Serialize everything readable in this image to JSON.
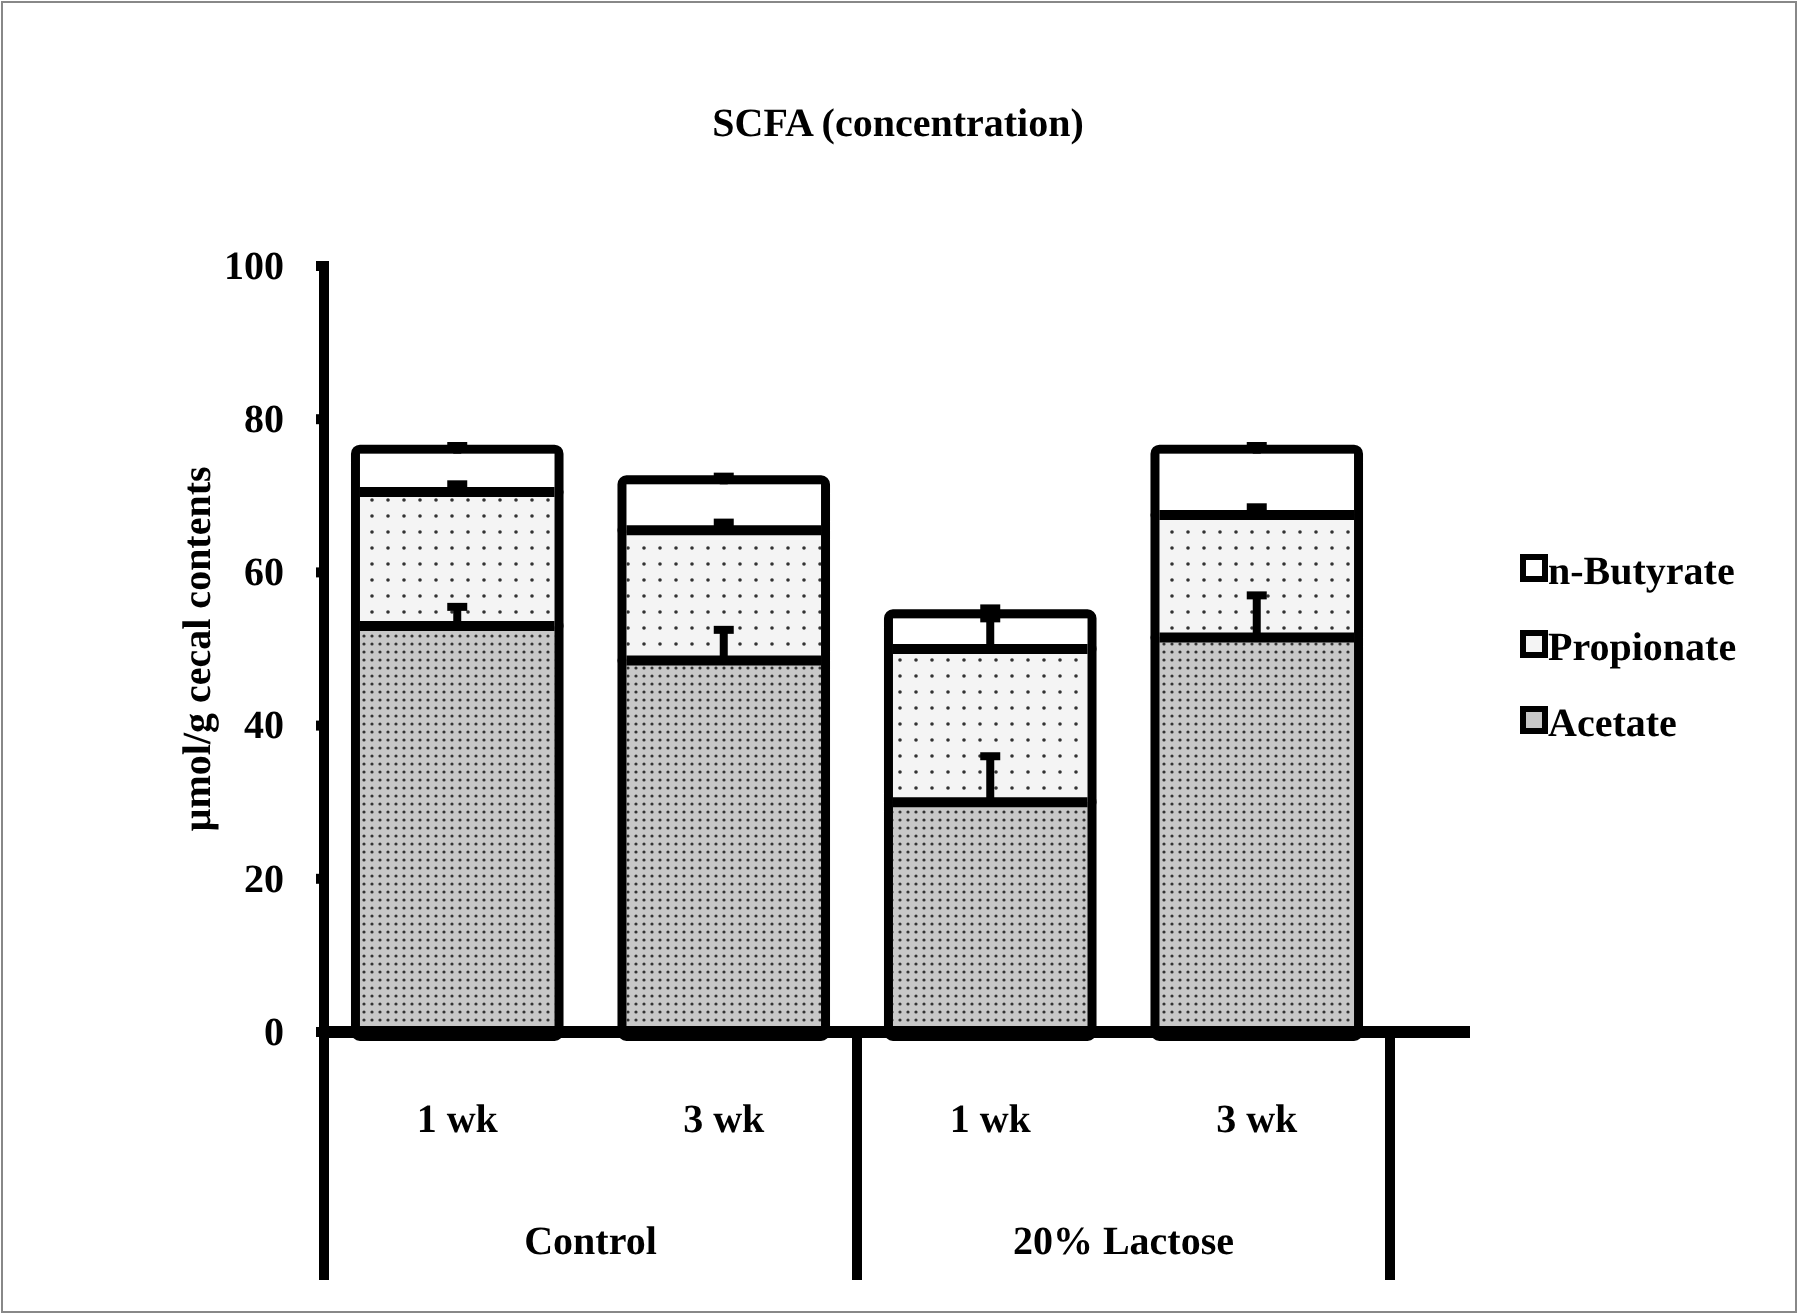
{
  "chart_data": {
    "type": "bar",
    "title": "SCFA (concentration)",
    "ylabel": "µmol/g cecal contents",
    "categories": [
      "1 wk",
      "3 wk",
      "1 wk",
      "3 wk"
    ],
    "annotations": [
      "Control",
      "20% Lactose"
    ],
    "stacked": true,
    "ylim": [
      0,
      100
    ],
    "yticks": [
      0,
      20,
      40,
      60,
      80,
      100
    ],
    "grid": false,
    "legend": "right",
    "series": [
      {
        "name": "Acetate",
        "color": "#c8c8c8",
        "values": [
          53,
          48.5,
          30,
          51.5
        ],
        "errors": [
          [
            53,
            55.5
          ],
          [
            48.5,
            52.5
          ],
          [
            30,
            36
          ],
          [
            51.5,
            57
          ]
        ]
      },
      {
        "name": "Propionate",
        "color": "#f4f4f4",
        "values": [
          17.5,
          17,
          20,
          16
        ],
        "errors": [
          [
            70.5,
            71.5
          ],
          [
            65.5,
            66.5
          ],
          [
            50,
            54
          ],
          [
            67.5,
            68.5
          ]
        ]
      },
      {
        "name": "n-Butyrate",
        "color": "#ffffff",
        "values": [
          5,
          6,
          4,
          8
        ],
        "errors": [
          [
            75.5,
            76.5
          ],
          [
            71.5,
            72.5
          ],
          [
            54,
            55.3
          ],
          [
            75.5,
            76.5
          ]
        ]
      }
    ]
  }
}
